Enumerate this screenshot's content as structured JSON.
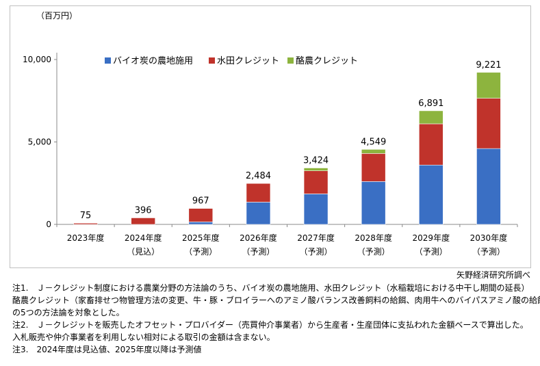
{
  "chart_data": {
    "type": "bar",
    "stacked": true,
    "unit_label": "（百万円）",
    "categories": [
      "2023年度",
      "2024年度",
      "2025年度",
      "2026年度",
      "2027年度",
      "2028年度",
      "2029年度",
      "2030年度"
    ],
    "category_sublabels": [
      "",
      "（見込）",
      "（予測）",
      "（予測）",
      "（予測）",
      "（予測）",
      "（予測）",
      "（予測）"
    ],
    "totals": [
      75,
      396,
      967,
      2484,
      3424,
      4549,
      6891,
      9221
    ],
    "total_labels": [
      "75",
      "396",
      "967",
      "2,484",
      "3,424",
      "4,549",
      "6,891",
      "9,221"
    ],
    "series": [
      {
        "name": "バイオ炭の農地施用",
        "color": "#3a6fc4",
        "values": [
          0,
          0,
          150,
          1350,
          1850,
          2600,
          3600,
          4600
        ]
      },
      {
        "name": "水田クレジット",
        "color": "#c0332b",
        "values": [
          75,
          396,
          817,
          1134,
          1400,
          1700,
          2500,
          3050
        ]
      },
      {
        "name": "酪農クレジット",
        "color": "#8db43e",
        "values": [
          0,
          0,
          0,
          0,
          174,
          249,
          791,
          1571
        ]
      }
    ],
    "yticks": [
      0,
      5000,
      10000
    ],
    "ytick_labels": [
      "0",
      "5,000",
      "10,000"
    ],
    "ylim": [
      0,
      10000
    ],
    "legend_position": "top"
  },
  "source": "矢野経済研究所調べ",
  "notes": [
    "注1.　Ｊ－クレジット制度における農業分野の方法論のうち、バイオ炭の農地施用、水田クレジット（水稲栽培における中干し期間の延長）",
    "酪農クレジット（家畜排せつ物管理方法の変更、牛・豚・ブロイラーへのアミノ酸バランス改善飼料の給餌、肉用牛へのバイパスアミノ酸の給餌）",
    "の5つの方法論を対象とした。",
    "注2.　Ｊ－クレジットを販売したオフセット・プロバイダー（売買仲介事業者）から生産者・生産団体に支払われた金額ベースで算出した。",
    "入札販売や仲介事業者を利用しない相対による取引の金額は含まない。",
    "注3.　2024年度は見込値、2025年度以降は予測値"
  ]
}
